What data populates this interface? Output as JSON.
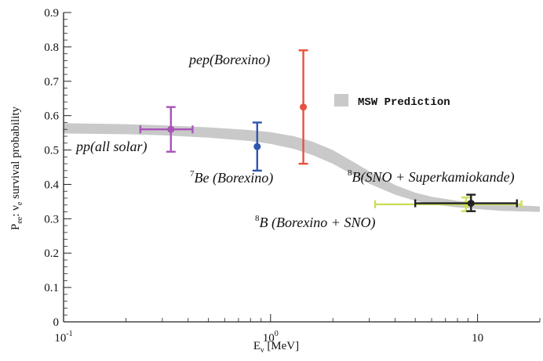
{
  "chart_data": {
    "type": "scatter",
    "x_scale": "log",
    "xlim": [
      0.1,
      20
    ],
    "ylim": [
      0,
      0.9
    ],
    "xlabel_main": "E",
    "xlabel_sub": "ν",
    "xlabel_unit": " [MeV]",
    "ylabel_main": "P",
    "ylabel_sub": "ee",
    "ylabel_mid": ":  ν",
    "ylabel_sub2": "e",
    "ylabel_tail": " survival probability",
    "x_tick_labels": [
      {
        "value": 0.1,
        "base": "10",
        "exp": "-1"
      },
      {
        "value": 1,
        "base": "10",
        "exp": "0"
      },
      {
        "value": 10,
        "base": "10",
        "exp": ""
      }
    ],
    "y_ticks": [
      0,
      0.1,
      0.2,
      0.3,
      0.4,
      0.5,
      0.6,
      0.7,
      0.8,
      0.9
    ],
    "y_tick_labels": [
      "0",
      "0.1",
      "0.2",
      "0.3",
      "0.4",
      "0.5",
      "0.6",
      "0.7",
      "0.8",
      "0.9"
    ],
    "grid": false,
    "legend_position": "top-right",
    "band": {
      "name": "MSW Prediction",
      "color": "#c9c9c9",
      "x": [
        0.1,
        0.2,
        0.3,
        0.5,
        0.8,
        1.0,
        1.3,
        1.6,
        2.0,
        2.5,
        3.0,
        4.0,
        5.0,
        6.0,
        8.0,
        10.0,
        13.0,
        20.0
      ],
      "y_low": [
        0.548,
        0.546,
        0.543,
        0.536,
        0.526,
        0.518,
        0.503,
        0.485,
        0.46,
        0.428,
        0.402,
        0.37,
        0.352,
        0.342,
        0.333,
        0.328,
        0.323,
        0.32
      ],
      "y_high": [
        0.578,
        0.575,
        0.572,
        0.566,
        0.558,
        0.552,
        0.54,
        0.524,
        0.5,
        0.466,
        0.438,
        0.398,
        0.376,
        0.364,
        0.352,
        0.346,
        0.341,
        0.336
      ]
    },
    "points": [
      {
        "name": "pp",
        "label_main": "pp",
        "label_rest": "(all solar)",
        "x": 0.33,
        "y": 0.56,
        "x_low": 0.235,
        "x_high": 0.42,
        "y_low": 0.495,
        "y_high": 0.625,
        "color": "#a855b8"
      },
      {
        "name": "7Be",
        "label_sup": "7",
        "label_main": "Be",
        "label_rest": " (Borexino)",
        "x": 0.862,
        "y": 0.51,
        "x_low": 0.862,
        "x_high": 0.862,
        "y_low": 0.44,
        "y_high": 0.58,
        "color": "#2f56b0"
      },
      {
        "name": "pep",
        "label_main": "pep",
        "label_rest": "(Borexino)",
        "x": 1.44,
        "y": 0.625,
        "x_low": 1.44,
        "x_high": 1.44,
        "y_low": 0.46,
        "y_high": 0.79,
        "color": "#e8503f"
      },
      {
        "name": "8B Borexino+SNO",
        "label_sup": "8",
        "label_main": "B",
        "label_rest": "  (Borexino + SNO)",
        "x": 8.8,
        "y": 0.342,
        "x_low": 3.2,
        "x_high": 16.3,
        "y_low": 0.322,
        "y_high": 0.362,
        "color": "#cddc5a"
      },
      {
        "name": "8B SNO+SK",
        "label_sup": "8",
        "label_main": "B",
        "label_rest": "(SNO + Superkamiokande)",
        "x": 9.3,
        "y": 0.345,
        "x_low": 5.0,
        "x_high": 15.5,
        "y_low": 0.322,
        "y_high": 0.37,
        "color": "#222222"
      }
    ]
  }
}
